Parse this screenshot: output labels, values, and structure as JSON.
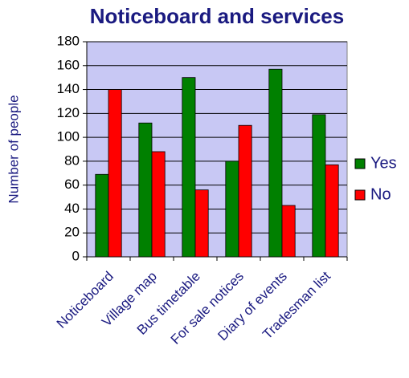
{
  "chart_data": {
    "type": "bar",
    "title": "Noticeboard and services",
    "y_label": "Number of people",
    "categories": [
      "Noticeboard",
      "Village map",
      "Bus timetable",
      "For sale notices",
      "Diary of events",
      "Tradesman list"
    ],
    "series": [
      {
        "name": "Yes",
        "color": "#008000",
        "values": [
          69,
          112,
          150,
          80,
          157,
          119
        ]
      },
      {
        "name": "No",
        "color": "#ff0000",
        "values": [
          140,
          88,
          56,
          110,
          43,
          77
        ]
      }
    ],
    "ylim": [
      0,
      180
    ],
    "yticks": [
      0,
      20,
      40,
      60,
      80,
      100,
      120,
      140,
      160,
      180
    ],
    "grid": true,
    "legend": "right",
    "plot_background": "#c8c8f4"
  }
}
